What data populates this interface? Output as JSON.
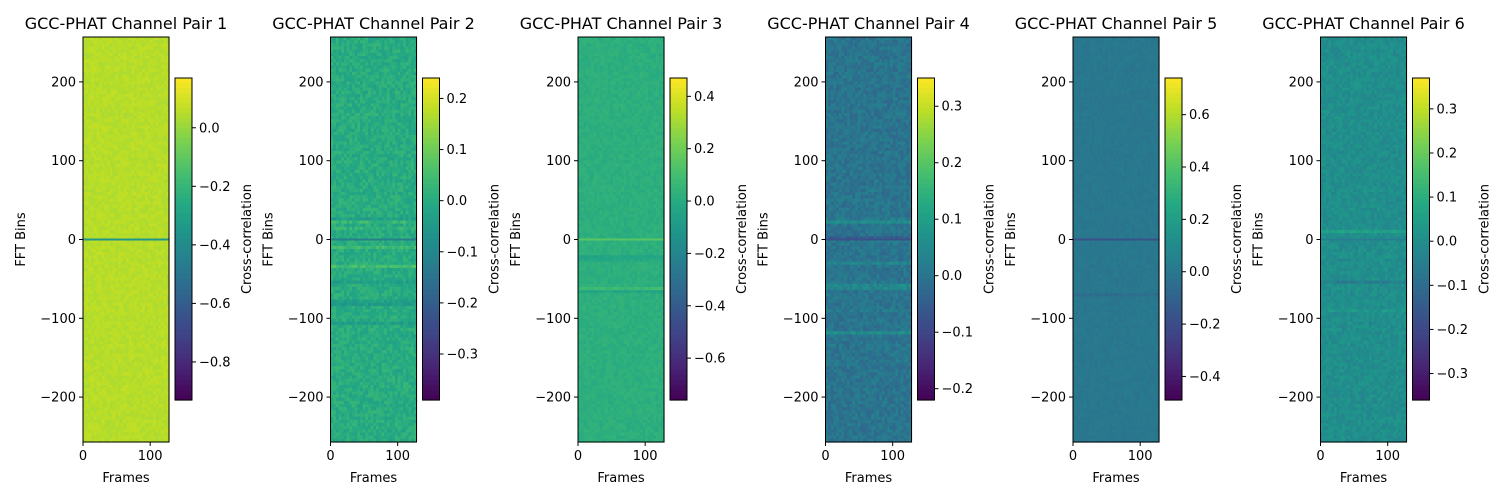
{
  "chart_data": [
    {
      "type": "heatmap",
      "title": "GCC-PHAT Channel Pair 1",
      "xlabel": "Frames",
      "ylabel": "FFT Bins",
      "colorbar_label": "Cross-correlation",
      "colormap": "viridis",
      "xlim": [
        0,
        128
      ],
      "ylim": [
        -257,
        257
      ],
      "xticks": [
        0,
        100
      ],
      "yticks": [
        -200,
        -100,
        0,
        100,
        200
      ],
      "clim": [
        -0.93,
        0.17
      ],
      "cticks": [
        -0.8,
        -0.6,
        -0.4,
        -0.2,
        0.0
      ],
      "background_value": 0.05,
      "noise": 0.02,
      "center_line_value": -0.35,
      "band_rows": []
    },
    {
      "type": "heatmap",
      "title": "GCC-PHAT Channel Pair 2",
      "xlabel": "Frames",
      "ylabel": "FFT Bins",
      "colorbar_label": "Cross-correlation",
      "colormap": "viridis",
      "xlim": [
        0,
        128
      ],
      "ylim": [
        -257,
        257
      ],
      "xticks": [
        0,
        100
      ],
      "yticks": [
        -200,
        -100,
        0,
        100,
        200
      ],
      "clim": [
        -0.39,
        0.24
      ],
      "cticks": [
        -0.3,
        -0.2,
        -0.1,
        0.0,
        0.1,
        0.2
      ],
      "background_value": 0.0,
      "noise": 0.03,
      "center_line_value": -0.12,
      "band_rows": [
        25,
        15,
        -10,
        -35,
        -55,
        -80,
        -105
      ]
    },
    {
      "type": "heatmap",
      "title": "GCC-PHAT Channel Pair 3",
      "xlabel": "Frames",
      "ylabel": "FFT Bins",
      "colorbar_label": "Cross-correlation",
      "colormap": "viridis",
      "xlim": [
        0,
        128
      ],
      "ylim": [
        -257,
        257
      ],
      "xticks": [
        0,
        100
      ],
      "yticks": [
        -200,
        -100,
        0,
        100,
        200
      ],
      "clim": [
        -0.76,
        0.47
      ],
      "cticks": [
        -0.6,
        -0.4,
        -0.2,
        0.0,
        0.2,
        0.4
      ],
      "background_value": 0.02,
      "noise": 0.025,
      "center_line_value": 0.15,
      "band_rows": [
        -25,
        -65
      ]
    },
    {
      "type": "heatmap",
      "title": "GCC-PHAT Channel Pair 4",
      "xlabel": "Frames",
      "ylabel": "FFT Bins",
      "colorbar_label": "Cross-correlation",
      "colormap": "viridis",
      "xlim": [
        0,
        128
      ],
      "ylim": [
        -257,
        257
      ],
      "xticks": [
        0,
        100
      ],
      "yticks": [
        -200,
        -100,
        0,
        100,
        200
      ],
      "clim": [
        -0.22,
        0.35
      ],
      "cticks": [
        -0.2,
        -0.1,
        0.0,
        0.1,
        0.2,
        0.3
      ],
      "background_value": 0.0,
      "noise": 0.03,
      "center_line_value": -0.08,
      "band_rows": [
        25,
        0,
        -30,
        -60,
        -90,
        -120
      ]
    },
    {
      "type": "heatmap",
      "title": "GCC-PHAT Channel Pair 5",
      "xlabel": "Frames",
      "ylabel": "FFT Bins",
      "colorbar_label": "Cross-correlation",
      "colormap": "viridis",
      "xlim": [
        0,
        128
      ],
      "ylim": [
        -257,
        257
      ],
      "xticks": [
        0,
        100
      ],
      "yticks": [
        -200,
        -100,
        0,
        100,
        200
      ],
      "clim": [
        -0.49,
        0.74
      ],
      "cticks": [
        -0.4,
        -0.2,
        0.0,
        0.2,
        0.4,
        0.6
      ],
      "background_value": 0.0,
      "noise": 0.02,
      "center_line_value": -0.18,
      "band_rows": [
        -70
      ]
    },
    {
      "type": "heatmap",
      "title": "GCC-PHAT Channel Pair 6",
      "xlabel": "Frames",
      "ylabel": "FFT Bins",
      "colorbar_label": "Cross-correlation",
      "colormap": "viridis",
      "xlim": [
        0,
        128
      ],
      "ylim": [
        -257,
        257
      ],
      "xticks": [
        0,
        100
      ],
      "yticks": [
        -200,
        -100,
        0,
        100,
        200
      ],
      "clim": [
        -0.36,
        0.37
      ],
      "cticks": [
        -0.3,
        -0.2,
        -0.1,
        0.0,
        0.1,
        0.2,
        0.3
      ],
      "background_value": 0.0,
      "noise": 0.03,
      "center_line_value": -0.05,
      "band_rows": [
        35,
        10,
        -25,
        -55,
        -90
      ]
    }
  ]
}
